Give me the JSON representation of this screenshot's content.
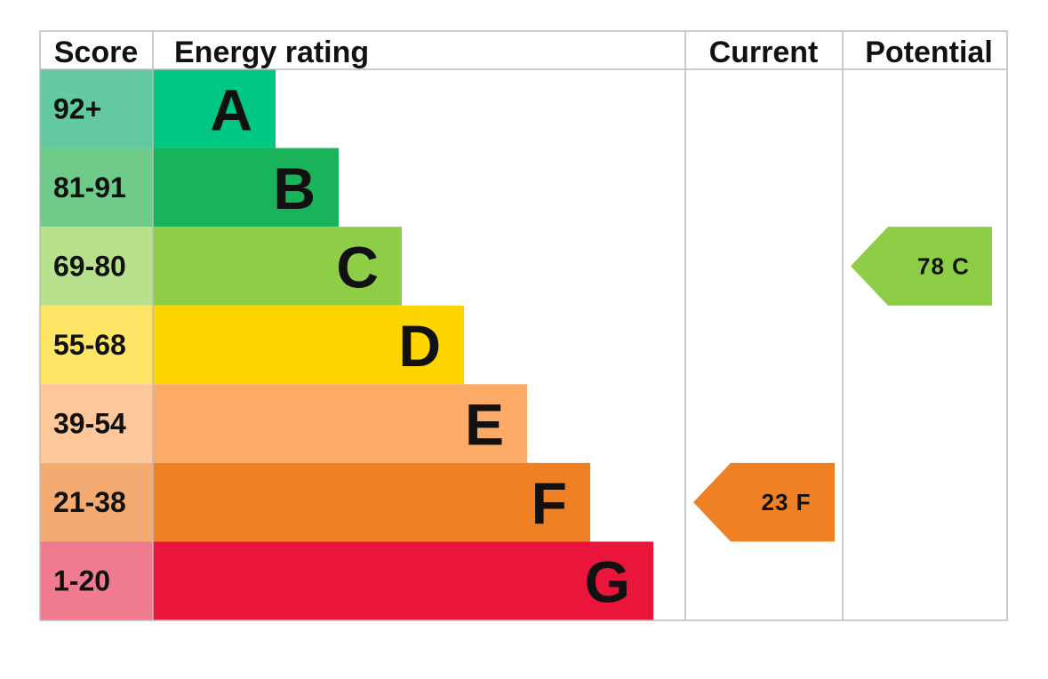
{
  "chart_data": {
    "type": "bar",
    "headers": {
      "score": "Score",
      "rating": "Energy rating",
      "current": "Current",
      "potential": "Potential"
    },
    "bands": [
      {
        "letter": "A",
        "range": "92+",
        "color": "#00c781",
        "score_bg": "#62c9a1"
      },
      {
        "letter": "B",
        "range": "81-91",
        "color": "#19b459",
        "score_bg": "#6ecb8a"
      },
      {
        "letter": "C",
        "range": "69-80",
        "color": "#8dce46",
        "score_bg": "#b8e18d"
      },
      {
        "letter": "D",
        "range": "55-68",
        "color": "#ffd500",
        "score_bg": "#ffe566"
      },
      {
        "letter": "E",
        "range": "39-54",
        "color": "#fcaa65",
        "score_bg": "#fdc79a"
      },
      {
        "letter": "F",
        "range": "21-38",
        "color": "#ef8023",
        "score_bg": "#f4ab71"
      },
      {
        "letter": "G",
        "range": "1-20",
        "color": "#e9153b",
        "score_bg": "#f07a8f"
      }
    ],
    "current": {
      "score": 23,
      "letter": "F",
      "label": "23  F",
      "color": "#ef8023"
    },
    "potential": {
      "score": 78,
      "letter": "C",
      "label": "78  C",
      "color": "#8dce46"
    }
  }
}
